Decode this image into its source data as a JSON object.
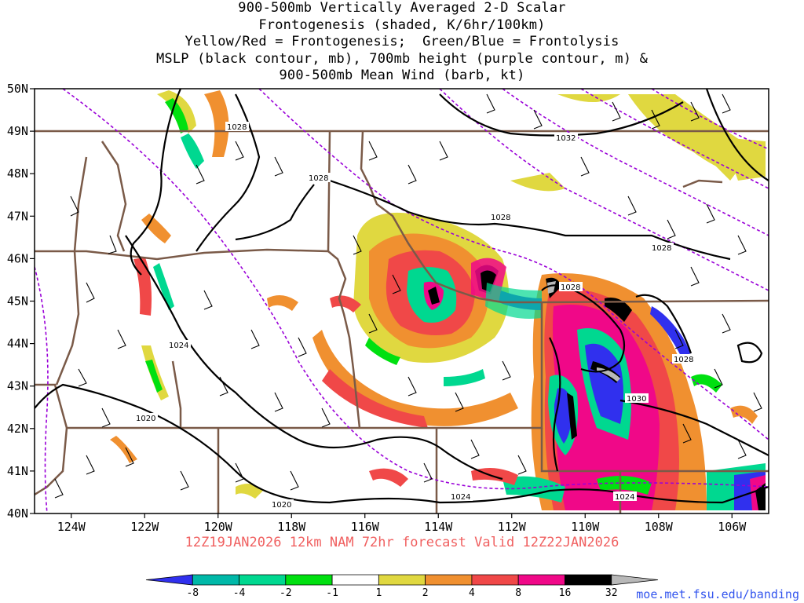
{
  "title_lines": [
    "900-500mb Vertically Averaged 2-D Scalar",
    "Frontogenesis (shaded, K/6hr/100km)",
    "Yellow/Red = Frontogenesis;  Green/Blue = Frontolysis",
    "MSLP (black contour, mb), 700mb height (purple contour, m) &",
    "900-500mb Mean Wind (barb, kt)"
  ],
  "valid_line": "12Z19JAN2026 12km NAM 72hr forecast Valid 12Z22JAN2026",
  "credit": "moe.met.fsu.edu/banding",
  "map": {
    "lon_range": [
      -125,
      -105
    ],
    "lat_range": [
      40,
      50
    ],
    "lat_labels": [
      "40N",
      "41N",
      "42N",
      "43N",
      "44N",
      "45N",
      "46N",
      "47N",
      "48N",
      "49N",
      "50N"
    ],
    "lon_labels": [
      "124W",
      "122W",
      "120W",
      "118W",
      "116W",
      "114W",
      "112W",
      "110W",
      "108W",
      "106W"
    ],
    "pressure_labels": [
      "1028",
      "1032",
      "1028",
      "1028",
      "1028",
      "1028",
      "1028",
      "1024",
      "1020",
      "1020",
      "1024",
      "1024",
      "1030"
    ]
  },
  "colorbar": {
    "labels": [
      "-8",
      "-4",
      "-2",
      "-1",
      "1",
      "2",
      "4",
      "8",
      "16",
      "32"
    ],
    "colors": [
      "#3030ee",
      "#00b8a8",
      "#00d890",
      "#00e010",
      "#ffffff",
      "#e0d840",
      "#f09030",
      "#f04848",
      "#f00888",
      "#000000",
      "#b8b8b8"
    ]
  }
}
